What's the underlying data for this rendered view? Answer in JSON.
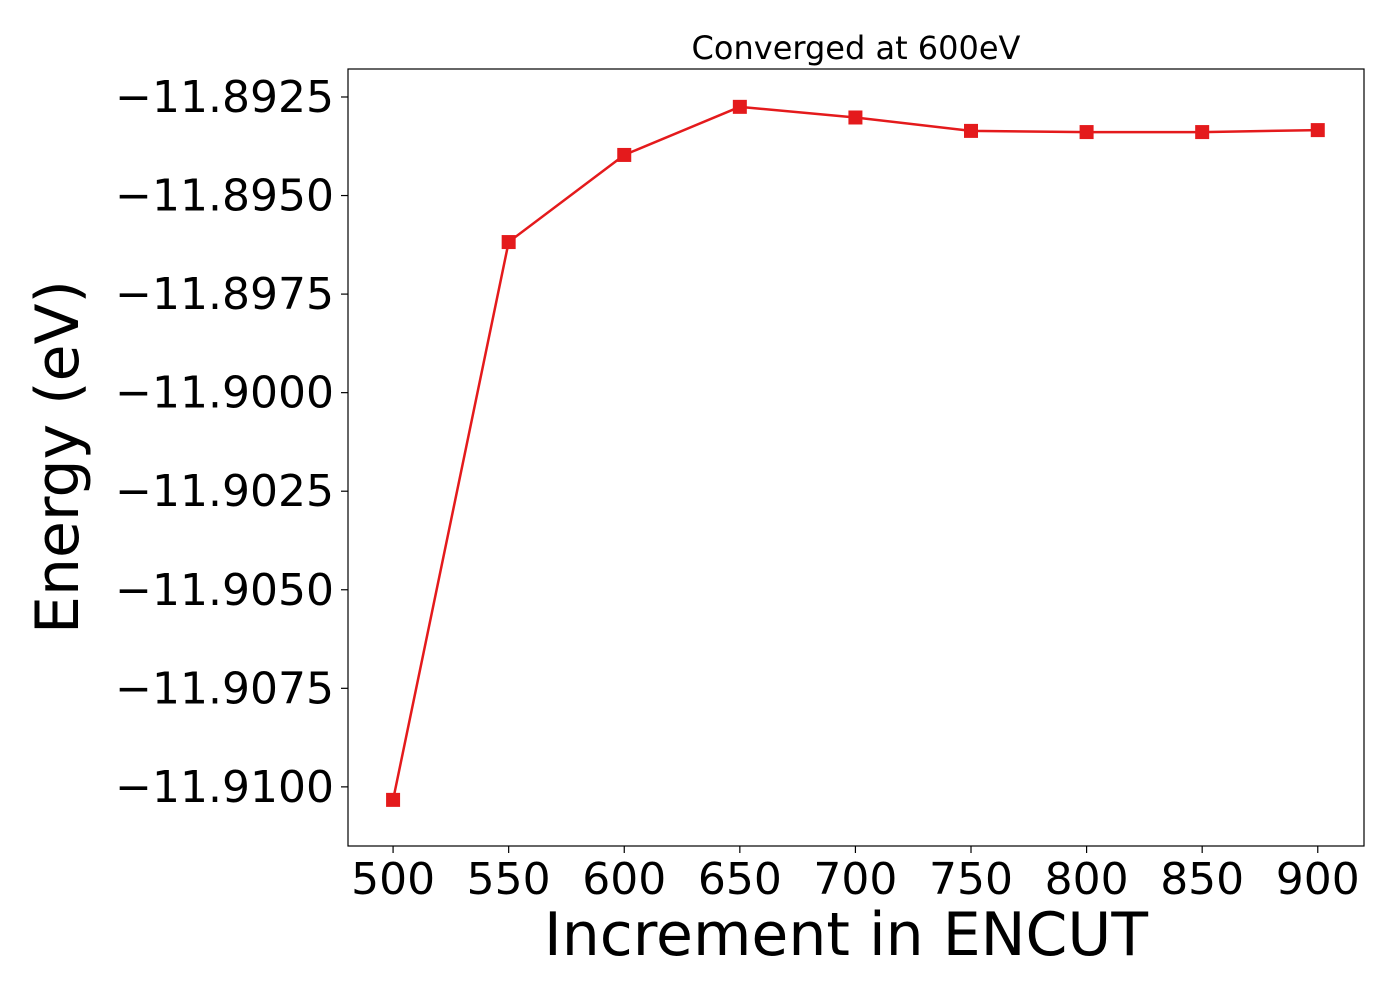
{
  "chart_data": {
    "type": "line",
    "title": "Converged at 600eV",
    "xlabel": "Increment in ENCUT",
    "ylabel": "Energy (eV)",
    "x": [
      500,
      550,
      600,
      650,
      700,
      750,
      800,
      850,
      900
    ],
    "series": [
      {
        "name": "",
        "values": [
          -11.91033,
          -11.89618,
          -11.89397,
          -11.89275,
          -11.89302,
          -11.89336,
          -11.89339,
          -11.89339,
          -11.89334
        ],
        "color": "#e41a1c",
        "marker": "square"
      }
    ],
    "xticks": [
      500,
      550,
      600,
      650,
      700,
      750,
      800,
      850,
      900
    ],
    "xtick_labels": [
      "500",
      "550",
      "600",
      "650",
      "700",
      "750",
      "800",
      "850",
      "900"
    ],
    "yticks": [
      -11.8925,
      -11.895,
      -11.8975,
      -11.9,
      -11.9025,
      -11.905,
      -11.9075,
      -11.91
    ],
    "ytick_labels": [
      "−11.8925",
      "−11.8950",
      "−11.8975",
      "−11.9000",
      "−11.9025",
      "−11.9050",
      "−11.9075",
      "−11.9100"
    ],
    "xlim": [
      480.5,
      920
    ],
    "ylim": [
      -11.9115,
      -11.89179
    ],
    "grid": false,
    "legend": "none"
  }
}
